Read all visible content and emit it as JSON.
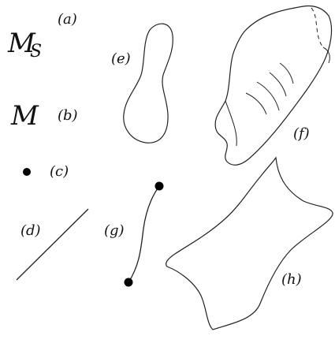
{
  "labels": {
    "a": "(a)",
    "b": "(b)",
    "c": "(c)",
    "d": "(d)",
    "e": "(e)",
    "f": "(f)",
    "g": "(g)",
    "h": "(h)"
  },
  "symbols": {
    "ms_base": "M",
    "ms_sub": "S",
    "m": "M"
  },
  "colors": {
    "stroke": "#222222",
    "dot": "#000000",
    "background": "#ffffff"
  }
}
